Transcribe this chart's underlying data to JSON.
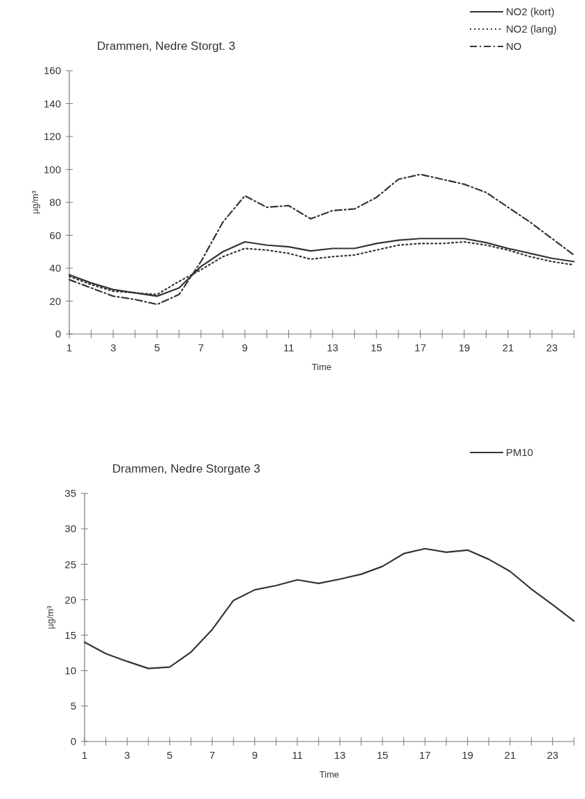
{
  "chart_data": [
    {
      "type": "line",
      "title": "Drammen, Nedre Storgt. 3",
      "xlabel": "Time",
      "ylabel": "µg/m³",
      "x": [
        1,
        2,
        3,
        4,
        5,
        6,
        7,
        8,
        9,
        10,
        11,
        12,
        13,
        14,
        15,
        16,
        17,
        18,
        19,
        20,
        21,
        22,
        23,
        24
      ],
      "xlim": [
        1,
        24
      ],
      "xticks": [
        1,
        {
          "value": 2,
          "label": null
        },
        3,
        {
          "value": 4,
          "label": null
        },
        5,
        {
          "value": 6,
          "label": null
        },
        7,
        {
          "value": 8,
          "label": null
        },
        9,
        {
          "value": 10,
          "label": null
        },
        11,
        {
          "value": 12,
          "label": null
        },
        13,
        {
          "value": 14,
          "label": null
        },
        15,
        {
          "value": 16,
          "label": null
        },
        17,
        {
          "value": 18,
          "label": null
        },
        19,
        {
          "value": 20,
          "label": null
        },
        21,
        {
          "value": 22,
          "label": null
        },
        23,
        {
          "value": 24,
          "label": null
        }
      ],
      "ylim": [
        0,
        160
      ],
      "yticks": [
        0,
        20,
        40,
        60,
        80,
        100,
        120,
        140,
        160
      ],
      "legend": "top right",
      "grid": false,
      "marker": "none",
      "series": [
        {
          "name": "NO2 (kort)",
          "color": "#333333",
          "line_style": "solid",
          "values": [
            36,
            31,
            27,
            25,
            23,
            28,
            41,
            50,
            56,
            54,
            53,
            50.5,
            52,
            52,
            55,
            57,
            58,
            58,
            58,
            55.5,
            52,
            49,
            46,
            44
          ]
        },
        {
          "name": "NO2 (lang)",
          "color": "#333333",
          "line_style": "dotted",
          "values": [
            35,
            30,
            26,
            25,
            24,
            32,
            39,
            47,
            52,
            51,
            49,
            45.5,
            47,
            48,
            51,
            54,
            55,
            55,
            56,
            54,
            51,
            47,
            44,
            42
          ]
        },
        {
          "name": "NO",
          "color": "#333333",
          "line_style": "dashed",
          "values": [
            33,
            28,
            23,
            21,
            18,
            24,
            44,
            68,
            84,
            77,
            78,
            70,
            75,
            76,
            83,
            94,
            97,
            94,
            91,
            86,
            77,
            68,
            58,
            48
          ]
        }
      ]
    },
    {
      "type": "line",
      "title": "Drammen, Nedre Storgate 3",
      "xlabel": "Time",
      "ylabel": "µg/m³",
      "x": [
        1,
        2,
        3,
        4,
        5,
        6,
        7,
        8,
        9,
        10,
        11,
        12,
        13,
        14,
        15,
        16,
        17,
        18,
        19,
        20,
        21,
        22,
        23,
        24
      ],
      "xlim": [
        1,
        24
      ],
      "xticks": [
        1,
        {
          "value": 2,
          "label": null
        },
        3,
        {
          "value": 4,
          "label": null
        },
        5,
        {
          "value": 6,
          "label": null
        },
        7,
        {
          "value": 8,
          "label": null
        },
        9,
        {
          "value": 10,
          "label": null
        },
        11,
        {
          "value": 12,
          "label": null
        },
        13,
        {
          "value": 14,
          "label": null
        },
        15,
        {
          "value": 16,
          "label": null
        },
        17,
        {
          "value": 18,
          "label": null
        },
        19,
        {
          "value": 20,
          "label": null
        },
        21,
        {
          "value": 22,
          "label": null
        },
        23,
        {
          "value": 24,
          "label": null
        }
      ],
      "ylim": [
        0,
        35
      ],
      "yticks": [
        0,
        5,
        10,
        15,
        20,
        25,
        30,
        35
      ],
      "legend": "top right",
      "grid": false,
      "marker": "none",
      "series": [
        {
          "name": "PM10",
          "color": "#333333",
          "line_style": "solid",
          "values": [
            14,
            12.4,
            11.3,
            10.3,
            10.5,
            12.6,
            15.8,
            19.9,
            21.4,
            22.0,
            22.8,
            22.3,
            22.9,
            23.6,
            24.7,
            26.5,
            27.2,
            26.7,
            27.0,
            25.7,
            24.0,
            21.5,
            19.3,
            17.0
          ]
        }
      ]
    }
  ]
}
